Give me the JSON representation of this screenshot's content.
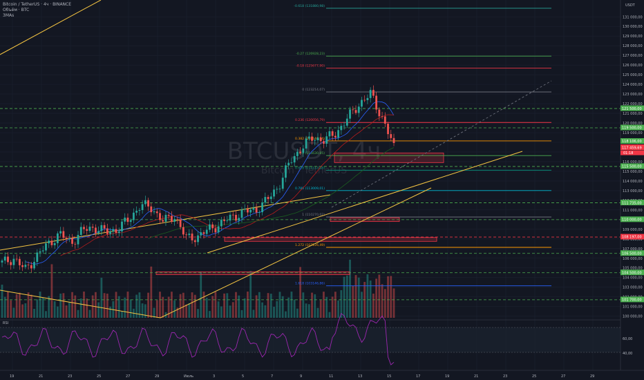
{
  "header": {
    "title": "Bitcoin / TetherUS · 4ч · BINANCE",
    "subtitle": "Объём · BTC",
    "indicator": "3MAs"
  },
  "watermark": {
    "symbol": "BTCUSDT, 4ч",
    "name": "Bitcoin / TetherUS"
  },
  "currency": "USDT",
  "rsi_label": "RSI",
  "price_axis_ticks": [
    "131 000,00",
    "130 000,00",
    "129 000,00",
    "128 000,00",
    "127 000,00",
    "126 000,00",
    "125 000,00",
    "124 000,00",
    "123 000,00",
    "122 000,00",
    "121 000,00",
    "120 000,00",
    "119 000,00",
    "118 000,00",
    "117 000,00",
    "116 000,00",
    "115 000,00",
    "114 000,00",
    "113 000,00",
    "112 000,00",
    "111 000,00",
    "110 000,00",
    "109 000,00",
    "108 000,00",
    "107 000,00",
    "106 000,00",
    "105 000,00",
    "104 000,00",
    "103 000,00",
    "102 000,00",
    "101 000,00",
    "100 000,00"
  ],
  "rsi_ticks": [
    "60,00",
    "40,00"
  ],
  "time_axis": [
    "19",
    "21",
    "23",
    "25",
    "27",
    "29",
    "Июль",
    "3",
    "5",
    "7",
    "9",
    "11",
    "13",
    "15",
    "17",
    "19",
    "21",
    "23",
    "25",
    "27",
    "29"
  ],
  "fib_levels": [
    {
      "label": "-0.618 (131880,98)",
      "price": 131880.98,
      "color": "#26a69a"
    },
    {
      "label": "-0.27 (126928,23)",
      "price": 126928.23,
      "color": "#4caf50"
    },
    {
      "label": "-0.18 (125677,90)",
      "price": 125677.9,
      "color": "#f23645"
    },
    {
      "label": "0 (123214,07)",
      "price": 123214.07,
      "color": "#787b86"
    },
    {
      "label": "0.236 (120056,79)",
      "price": 120056.79,
      "color": "#f23645"
    },
    {
      "label": "0.382 (118146,14)",
      "price": 118146.14,
      "color": "#ff9800"
    },
    {
      "label": "0.5 (116630,85)",
      "price": 116630.85,
      "color": "#4caf50"
    },
    {
      "label": "0.618 (115113,28)",
      "price": 115113.28,
      "color": "#089981"
    },
    {
      "label": "0.786 (113009,01)",
      "price": 113009.01,
      "color": "#00bcd4"
    },
    {
      "label": "1 (110270,02)",
      "price": 110270.02,
      "color": "#787b86"
    },
    {
      "label": "1.272 (107126,49)",
      "price": 107126.49,
      "color": "#ff9800"
    },
    {
      "label": "1.618 (103146,86)",
      "price": 103146.86,
      "color": "#2962ff"
    }
  ],
  "price_tags": [
    {
      "label": "121 500,00",
      "price": 121500,
      "color": "#4caf50"
    },
    {
      "label": "119 500,00",
      "price": 119500,
      "color": "#4caf50"
    },
    {
      "label": "118 106,00",
      "price": 118106,
      "color": "#4caf50"
    },
    {
      "label": "117 459,69",
      "price": 117459.69,
      "color": "#f23645"
    },
    {
      "label": "115 500,00",
      "price": 115500,
      "color": "#4caf50"
    },
    {
      "label": "111 735,00",
      "price": 111735,
      "color": "#4caf50"
    },
    {
      "label": "110 000,00",
      "price": 110000,
      "color": "#4caf50"
    },
    {
      "label": "108 197,00",
      "price": 108197,
      "color": "#f23645"
    },
    {
      "label": "106 500,00",
      "price": 106500,
      "color": "#4caf50"
    },
    {
      "label": "104 500,00",
      "price": 104500,
      "color": "#4caf50"
    },
    {
      "label": "101 700,00",
      "price": 101700,
      "color": "#4caf50"
    }
  ],
  "countdown": "01:18",
  "colors": {
    "up": "#26a69a",
    "down": "#ef5350",
    "trend": "#f5c542",
    "bg": "#131722"
  },
  "chart_data": {
    "type": "candlestick",
    "ylim": [
      100000,
      132500
    ],
    "candles_close_approx": [
      105500,
      106000,
      104800,
      106200,
      107500,
      108500,
      107600,
      108900,
      109200,
      108700,
      109000,
      110000,
      111500,
      111200,
      109800,
      110400,
      108000,
      108300,
      109000,
      109600,
      110300,
      110800,
      111000,
      112000,
      113500,
      116000,
      117500,
      118500,
      118200,
      119000,
      120500,
      122000,
      123000,
      120500,
      117460
    ]
  }
}
